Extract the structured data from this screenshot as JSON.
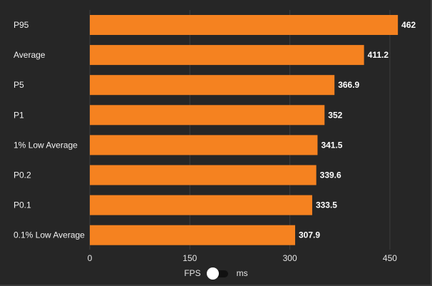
{
  "chart_data": {
    "type": "bar",
    "orientation": "horizontal",
    "categories": [
      "P95",
      "Average",
      "P5",
      "P1",
      "1% Low Average",
      "P0.2",
      "P0.1",
      "0.1% Low Average"
    ],
    "values": [
      462,
      411.2,
      366.9,
      352,
      341.5,
      339.6,
      333.5,
      307.9
    ],
    "value_labels": [
      "462",
      "411.2",
      "366.9",
      "352",
      "341.5",
      "339.6",
      "333.5",
      "307.9"
    ],
    "x_ticks": [
      0,
      150,
      300,
      450
    ],
    "xlim": [
      0,
      480
    ],
    "grid": true,
    "bar_color": "#f58220",
    "grid_color": "#3d3d3d"
  },
  "toggle": {
    "left_label": "FPS",
    "right_label": "ms",
    "selected": "FPS"
  }
}
